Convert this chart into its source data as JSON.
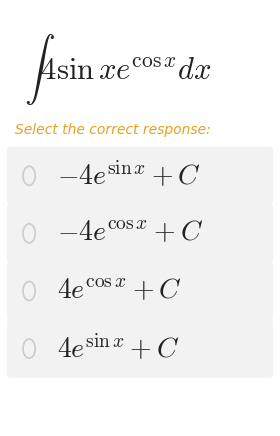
{
  "title_latex": "$\\int 4 \\sin x e^{\\cos x} dx$",
  "subtitle": "Select the correct response:",
  "subtitle_color": "#e8a020",
  "options": [
    "$-4e^{\\sin x} + C$",
    "$-4e^{\\cos x} + C$",
    "$4e^{\\cos x} + C$",
    "$4e^{\\sin x} + C$"
  ],
  "background_color": "#ffffff",
  "option_box_color": "#f2f2f2",
  "circle_color": "#cccccc",
  "text_color": "#222222",
  "title_fontsize": 22,
  "subtitle_fontsize": 10,
  "option_fontsize": 20
}
